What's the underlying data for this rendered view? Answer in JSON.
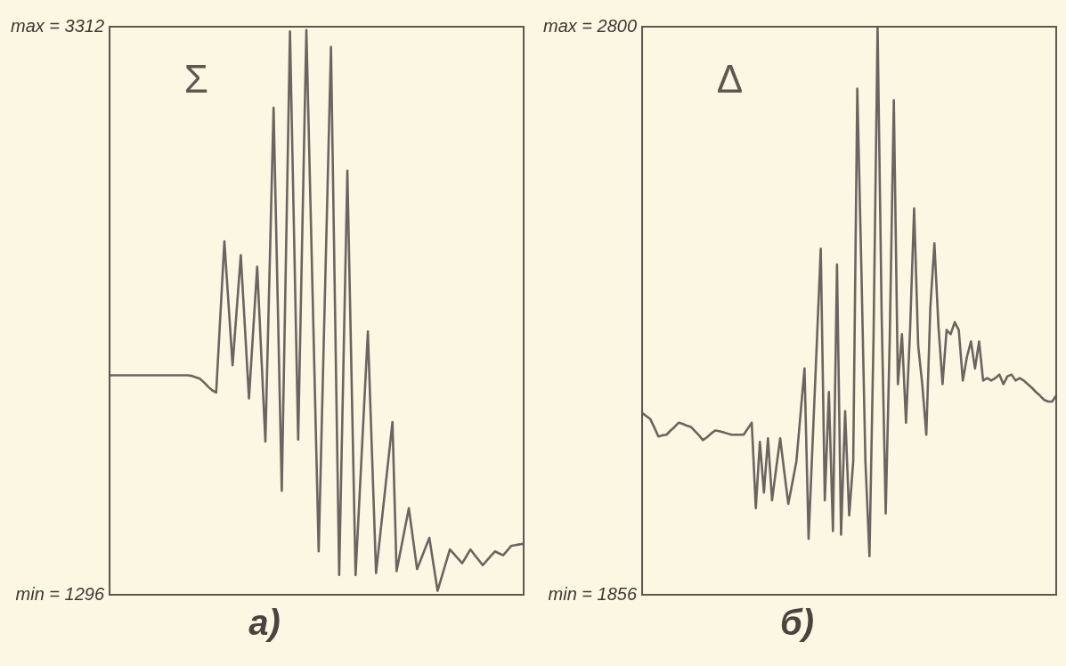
{
  "chart_data": [
    {
      "type": "line",
      "title": "а)",
      "annotations": [
        "Σ"
      ],
      "marker": "none",
      "tick_labels": "y",
      "grid": false,
      "ylim": [
        1296,
        3312
      ],
      "yticks": [
        {
          "value": 1296,
          "label": "min = 1296"
        },
        {
          "value": 3312,
          "label": "max = 3312"
        }
      ],
      "categories": [
        null,
        null,
        null,
        null,
        null,
        null,
        null,
        null,
        null,
        null,
        null,
        null,
        null,
        null,
        null,
        null,
        null,
        null,
        null,
        null,
        null,
        null,
        null,
        null,
        null,
        null,
        null,
        null,
        null,
        null,
        null,
        null,
        null,
        null,
        null,
        null,
        null,
        null,
        null,
        null,
        null,
        null,
        null,
        null,
        null,
        null,
        null,
        null,
        null,
        null,
        null,
        null,
        null,
        null,
        null,
        null,
        null,
        null,
        null,
        null,
        null,
        null,
        null,
        null,
        null,
        null,
        null,
        null,
        null,
        null,
        null,
        null,
        null,
        null,
        null,
        null,
        null,
        null,
        null,
        null,
        null,
        null,
        null,
        null,
        null,
        null,
        null,
        null,
        null,
        null,
        null,
        null,
        null,
        null,
        null,
        null,
        null,
        null,
        null,
        null,
        null,
        null
      ],
      "series": [
        {
          "color": "#6b6460",
          "values": [
            2075,
            2075,
            2075,
            2075,
            2075,
            2075,
            2075,
            2075,
            2075,
            2075,
            2075,
            2075,
            2075,
            2075,
            2075,
            2075,
            2075,
            2075,
            2075,
            2075,
            2073,
            2068,
            2063,
            2050,
            2035,
            2022,
            2014,
            2282,
            2550,
            2330,
            2111,
            2306,
            2501,
            2247,
            1993,
            2226,
            2460,
            2150,
            1840,
            2432,
            3024,
            2344,
            1665,
            2480,
            3295,
            2571,
            1847,
            2578,
            3300,
            2683,
            2067,
            1450,
            2047,
            2643,
            3240,
            2303,
            1366,
            2083,
            2801,
            2083,
            1366,
            1654,
            1942,
            2230,
            1801,
            1373,
            1507,
            1641,
            1775,
            1909,
            1380,
            1454,
            1529,
            1603,
            1495,
            1387,
            1424,
            1461,
            1498,
            1404,
            1310,
            1359,
            1408,
            1457,
            1441,
            1424,
            1408,
            1432,
            1457,
            1438,
            1420,
            1401,
            1417,
            1434,
            1450,
            1443,
            1436,
            1453,
            1470,
            1472,
            1475,
            1477
          ]
        }
      ]
    },
    {
      "type": "line",
      "title": "б)",
      "annotations": [
        "Δ"
      ],
      "marker": "none",
      "tick_labels": "y",
      "grid": false,
      "ylim": [
        1856,
        2800
      ],
      "yticks": [
        {
          "value": 1856,
          "label": "min = 1856"
        },
        {
          "value": 2800,
          "label": "max = 2800"
        }
      ],
      "categories": [
        null,
        null,
        null,
        null,
        null,
        null,
        null,
        null,
        null,
        null,
        null,
        null,
        null,
        null,
        null,
        null,
        null,
        null,
        null,
        null,
        null,
        null,
        null,
        null,
        null,
        null,
        null,
        null,
        null,
        null,
        null,
        null,
        null,
        null,
        null,
        null,
        null,
        null,
        null,
        null,
        null,
        null,
        null,
        null,
        null,
        null,
        null,
        null,
        null,
        null,
        null,
        null,
        null,
        null,
        null,
        null,
        null,
        null,
        null,
        null,
        null,
        null,
        null,
        null,
        null,
        null,
        null,
        null,
        null,
        null,
        null,
        null,
        null,
        null,
        null,
        null,
        null,
        null,
        null,
        null,
        null,
        null,
        null,
        null,
        null,
        null,
        null,
        null,
        null,
        null,
        null,
        null,
        null,
        null,
        null,
        null,
        null,
        null,
        null,
        null,
        null,
        null,
        null
      ],
      "series": [
        {
          "color": "#6b6460",
          "values": [
            2158,
            2153,
            2148,
            2134,
            2119,
            2121,
            2122,
            2129,
            2135,
            2142,
            2140,
            2137,
            2135,
            2128,
            2121,
            2113,
            2118,
            2124,
            2129,
            2128,
            2126,
            2124,
            2122,
            2122,
            2122,
            2122,
            2132,
            2142,
            2000,
            2110,
            2026,
            2116,
            2013,
            2065,
            2116,
            2061,
            2007,
            2042,
            2078,
            2155,
            2232,
            1949,
            2110,
            2270,
            2431,
            2013,
            2193,
            1962,
            2405,
            1956,
            2161,
            1988,
            2078,
            2697,
            2399,
            2078,
            1920,
            2283,
            2800,
            2322,
            1991,
            2283,
            2678,
            2206,
            2289,
            2142,
            2296,
            2498,
            2270,
            2206,
            2122,
            2334,
            2440,
            2302,
            2206,
            2296,
            2289,
            2309,
            2296,
            2212,
            2251,
            2277,
            2232,
            2277,
            2212,
            2216,
            2212,
            2216,
            2222,
            2206,
            2219,
            2222,
            2212,
            2216,
            2212,
            2206,
            2200,
            2193,
            2187,
            2180,
            2177,
            2177,
            2187
          ]
        }
      ]
    }
  ]
}
